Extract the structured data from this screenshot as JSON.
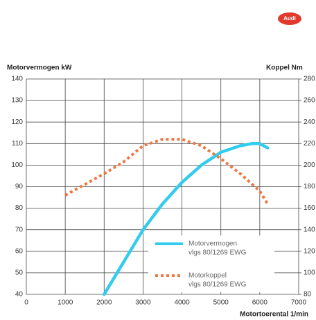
{
  "brand": "Audi",
  "chart_data": {
    "type": "line",
    "y_label": "Motorvermogen kW",
    "y2_label": "Koppel Nm",
    "x_label": "Motortoerental 1/min",
    "xlim": [
      0,
      7000
    ],
    "xticks": [
      0,
      1000,
      2000,
      3000,
      4000,
      5000,
      6000,
      7000
    ],
    "ylim": [
      40,
      140
    ],
    "yticks": [
      40,
      50,
      60,
      70,
      80,
      90,
      100,
      110,
      120,
      130,
      140
    ],
    "y2lim": [
      80,
      280
    ],
    "y2ticks": [
      80,
      100,
      120,
      140,
      160,
      180,
      200,
      220,
      240,
      260,
      280
    ],
    "grid": true,
    "series": [
      {
        "name": "Motorvermogen",
        "note": "vlgs 80/1269 EWG",
        "color": "#33ccee",
        "style": "solid",
        "x": [
          2000,
          2500,
          3000,
          3500,
          4000,
          4500,
          5000,
          5500,
          5800,
          6000,
          6200
        ],
        "values": [
          40,
          55,
          70,
          82,
          92,
          100,
          106,
          109,
          110,
          110,
          108
        ]
      },
      {
        "name": "Motorkoppel",
        "note": "vlgs 80/1269 EWG",
        "color": "#ee7744",
        "style": "dotted",
        "axis": "y2",
        "x": [
          1000,
          1500,
          2000,
          2500,
          3000,
          3500,
          4000,
          4500,
          5000,
          5500,
          6000,
          6200
        ],
        "values": [
          172,
          182,
          192,
          203,
          218,
          224,
          224,
          218,
          206,
          192,
          176,
          164
        ]
      }
    ]
  }
}
